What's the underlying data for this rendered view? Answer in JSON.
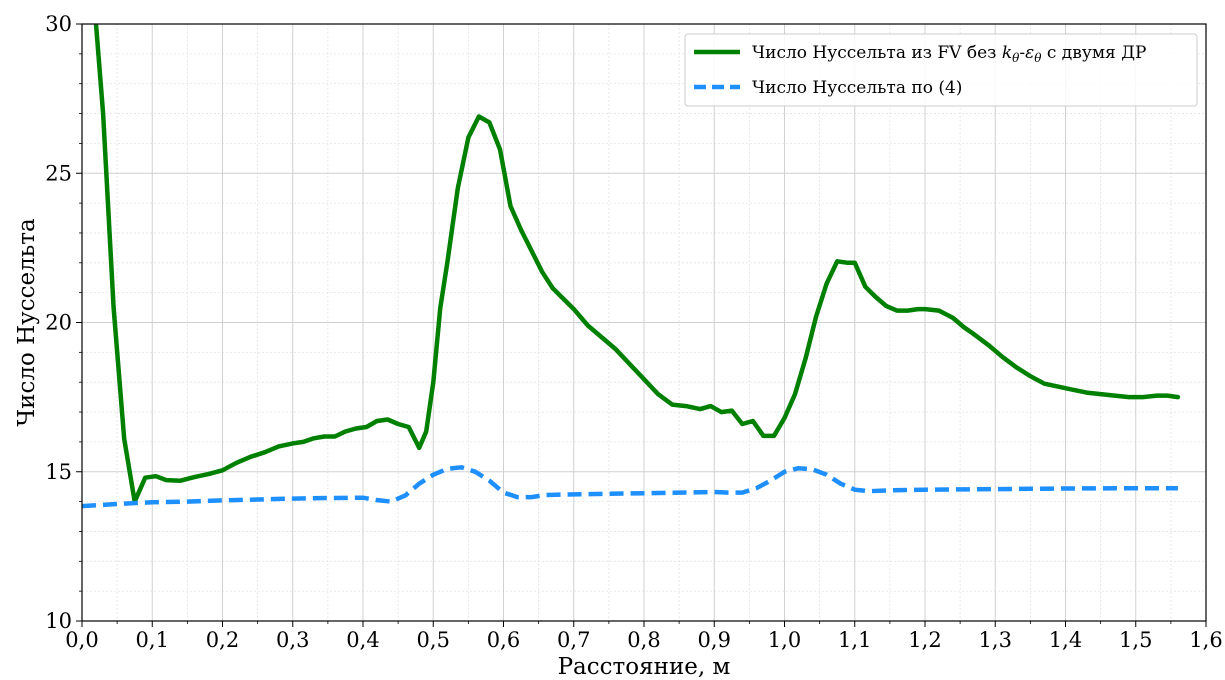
{
  "chart_data": {
    "type": "line",
    "title": "",
    "xlabel": "Расстояние, м",
    "ylabel": "Число Нуссельта",
    "xlim": [
      0.0,
      1.6
    ],
    "ylim": [
      10,
      30
    ],
    "grid": true,
    "legend_position": "top-right",
    "x_ticks": [
      "0,0",
      "0,1",
      "0,2",
      "0,3",
      "0,4",
      "0,5",
      "0,6",
      "0,7",
      "0,8",
      "0,9",
      "1,0",
      "1,1",
      "1,2",
      "1,3",
      "1,4",
      "1,5",
      "1,6"
    ],
    "y_ticks": [
      "10",
      "15",
      "20",
      "25",
      "30"
    ],
    "series": [
      {
        "name": "Число Нуссельта из FV без kθ-εθ с двумя ДР",
        "legend_main": "Число Нуссельта из FV без ",
        "legend_k": "k",
        "legend_k_sub": "θ",
        "legend_dash": "-",
        "legend_eps": "ε",
        "legend_eps_sub": "θ",
        "legend_tail": " с двумя ДР",
        "color": "#008000",
        "style": "solid",
        "x": [
          0.02,
          0.03,
          0.045,
          0.06,
          0.075,
          0.09,
          0.105,
          0.12,
          0.14,
          0.16,
          0.18,
          0.2,
          0.22,
          0.24,
          0.26,
          0.28,
          0.3,
          0.315,
          0.33,
          0.345,
          0.36,
          0.375,
          0.39,
          0.405,
          0.42,
          0.435,
          0.45,
          0.465,
          0.48,
          0.49,
          0.5,
          0.51,
          0.52,
          0.535,
          0.55,
          0.565,
          0.58,
          0.595,
          0.61,
          0.625,
          0.64,
          0.655,
          0.67,
          0.685,
          0.7,
          0.72,
          0.74,
          0.76,
          0.78,
          0.8,
          0.82,
          0.84,
          0.86,
          0.88,
          0.895,
          0.91,
          0.925,
          0.94,
          0.955,
          0.97,
          0.985,
          1.0,
          1.015,
          1.03,
          1.045,
          1.06,
          1.075,
          1.09,
          1.1,
          1.115,
          1.13,
          1.145,
          1.16,
          1.175,
          1.19,
          1.2,
          1.22,
          1.24,
          1.255,
          1.27,
          1.29,
          1.31,
          1.33,
          1.35,
          1.37,
          1.39,
          1.41,
          1.43,
          1.45,
          1.47,
          1.49,
          1.51,
          1.53,
          1.545,
          1.56
        ],
        "y": [
          30.0,
          27.0,
          20.5,
          16.1,
          14.0,
          14.8,
          14.85,
          14.72,
          14.7,
          14.82,
          14.92,
          15.05,
          15.3,
          15.5,
          15.65,
          15.85,
          15.95,
          16.0,
          16.12,
          16.18,
          16.18,
          16.35,
          16.45,
          16.5,
          16.7,
          16.75,
          16.6,
          16.5,
          15.8,
          16.35,
          18.0,
          20.5,
          22.0,
          24.5,
          26.2,
          26.9,
          26.7,
          25.8,
          23.9,
          23.1,
          22.4,
          21.7,
          21.15,
          20.8,
          20.45,
          19.9,
          19.5,
          19.1,
          18.6,
          18.1,
          17.6,
          17.25,
          17.2,
          17.1,
          17.2,
          17.0,
          17.05,
          16.6,
          16.7,
          16.2,
          16.2,
          16.8,
          17.6,
          18.8,
          20.2,
          21.3,
          22.05,
          22.0,
          22.0,
          21.2,
          20.85,
          20.55,
          20.4,
          20.4,
          20.45,
          20.45,
          20.4,
          20.15,
          19.85,
          19.6,
          19.25,
          18.85,
          18.5,
          18.2,
          17.95,
          17.85,
          17.75,
          17.65,
          17.6,
          17.55,
          17.5,
          17.5,
          17.55,
          17.55,
          17.5
        ]
      },
      {
        "name": "Число Нуссельта по (4)",
        "legend_main": "Число Нуссельта по (4)",
        "color": "#1e8fff",
        "style": "dashed",
        "x": [
          0.0,
          0.05,
          0.1,
          0.15,
          0.2,
          0.25,
          0.3,
          0.35,
          0.4,
          0.42,
          0.44,
          0.46,
          0.48,
          0.5,
          0.52,
          0.54,
          0.56,
          0.58,
          0.6,
          0.62,
          0.64,
          0.66,
          0.7,
          0.75,
          0.8,
          0.85,
          0.9,
          0.92,
          0.94,
          0.96,
          0.98,
          1.0,
          1.02,
          1.04,
          1.06,
          1.08,
          1.1,
          1.12,
          1.15,
          1.2,
          1.3,
          1.4,
          1.5,
          1.56
        ],
        "y": [
          13.85,
          13.92,
          13.98,
          14.0,
          14.04,
          14.07,
          14.1,
          14.12,
          14.13,
          14.05,
          14.0,
          14.2,
          14.6,
          14.9,
          15.1,
          15.15,
          15.0,
          14.7,
          14.3,
          14.15,
          14.15,
          14.22,
          14.24,
          14.26,
          14.28,
          14.3,
          14.32,
          14.3,
          14.3,
          14.45,
          14.7,
          15.0,
          15.12,
          15.08,
          14.9,
          14.6,
          14.4,
          14.35,
          14.38,
          14.4,
          14.42,
          14.44,
          14.45,
          14.45
        ]
      }
    ]
  }
}
